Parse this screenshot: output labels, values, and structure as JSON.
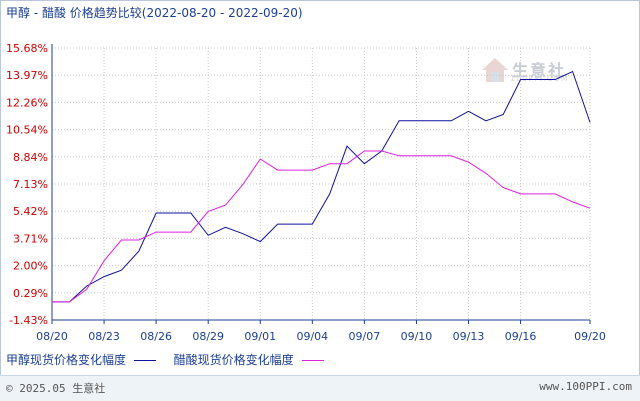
{
  "title": "甲醇 - 醋酸 价格趋势比较(2022-08-20 - 2022-09-20)",
  "watermark": {
    "name": "生意社",
    "url": "100PPI.COM"
  },
  "footer": {
    "left": "© 2025.05 生意社",
    "right": "www.100PPI.com"
  },
  "colors": {
    "series1": "#1010a0",
    "series2": "#e020e0",
    "grid": "#c8c8c8",
    "axis": "#1c3f95"
  },
  "chart_data": {
    "type": "line",
    "x": [
      "08/20",
      "08/21",
      "08/22",
      "08/23",
      "08/24",
      "08/25",
      "08/26",
      "08/27",
      "08/28",
      "08/29",
      "08/30",
      "08/31",
      "09/01",
      "09/02",
      "09/03",
      "09/04",
      "09/05",
      "09/06",
      "09/07",
      "09/08",
      "09/09",
      "09/10",
      "09/11",
      "09/12",
      "09/13",
      "09/14",
      "09/15",
      "09/16",
      "09/17",
      "09/18",
      "09/19",
      "09/20"
    ],
    "x_tick_labels": [
      "08/20",
      "08/23",
      "08/26",
      "08/29",
      "09/01",
      "09/04",
      "09/07",
      "09/10",
      "09/13",
      "09/16",
      "09/20"
    ],
    "y_tick_labels": [
      "15.68%",
      "13.97%",
      "12.26%",
      "10.54%",
      "8.84%",
      "7.13%",
      "5.42%",
      "3.71%",
      "2.00%",
      "0.29%",
      "-1.43%"
    ],
    "ylim": [
      -1.43,
      15.68
    ],
    "series": [
      {
        "name": "甲醇现货价格变化幅度",
        "values": [
          -0.29,
          -0.29,
          0.7,
          1.3,
          1.7,
          2.9,
          5.3,
          5.3,
          5.3,
          3.9,
          4.4,
          4.0,
          3.5,
          4.6,
          4.6,
          4.6,
          6.5,
          9.5,
          8.4,
          9.2,
          11.1,
          11.1,
          11.1,
          11.1,
          11.7,
          11.1,
          11.5,
          13.7,
          13.7,
          13.7,
          14.2,
          11.0
        ]
      },
      {
        "name": "醋酸现货价格变化幅度",
        "values": [
          -0.29,
          -0.29,
          0.5,
          2.3,
          3.6,
          3.6,
          4.1,
          4.1,
          4.1,
          5.4,
          5.8,
          7.1,
          8.7,
          8.0,
          8.0,
          8.0,
          8.4,
          8.4,
          9.2,
          9.2,
          8.9,
          8.9,
          8.9,
          8.9,
          8.5,
          7.8,
          6.9,
          6.5,
          6.5,
          6.5,
          6.0,
          5.6
        ]
      }
    ],
    "grid": true,
    "legend_position": "bottom"
  }
}
